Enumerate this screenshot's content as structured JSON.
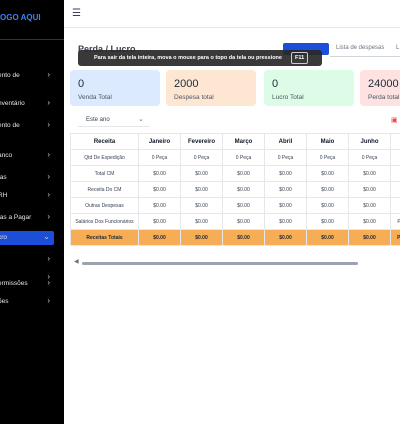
{
  "sidebar": {
    "logo": "OGO AQUI",
    "items": [
      {
        "label": "ento de",
        "chevron": "›"
      },
      {
        "label": "nventário",
        "chevron": "›"
      },
      {
        "label": "ento de",
        "chevron": "›"
      },
      {
        "label": "anco",
        "chevron": "›"
      },
      {
        "label": "tas",
        "chevron": "›"
      },
      {
        "label": "RH",
        "chevron": "›"
      },
      {
        "label": "tas a Pagar",
        "chevron": "›"
      },
      {
        "label": "cro",
        "chevron": "⌄",
        "active": true
      },
      {
        "label": "",
        "chevron": "›"
      },
      {
        "label": "",
        "chevron": "›"
      },
      {
        "label": "ermissões",
        "chevron": "›"
      },
      {
        "label": "ões",
        "chevron": "›"
      }
    ]
  },
  "header": {
    "menu_icon": "☰",
    "title": "Perda / Lucro"
  },
  "fullscreen_tip": {
    "text": "Para sair da tela inteira, mova o mouse para o topo da tela ou pressione",
    "key": "F11"
  },
  "tabs": [
    {
      "label": "",
      "active": true
    },
    {
      "label": "Lista de despesas"
    },
    {
      "label": "L"
    }
  ],
  "cards": [
    {
      "value": "0",
      "label": "Venda Total",
      "bg": "#dbeafe"
    },
    {
      "value": "2000",
      "label": "Despesa total",
      "bg": "#fde7d3"
    },
    {
      "value": "0",
      "label": "Lucro Total",
      "bg": "#dcfce7"
    },
    {
      "value": "24000",
      "label": "Perda total",
      "bg": "#fee2e2"
    }
  ],
  "filter": {
    "value": "Este ano",
    "icon": "chevron-down-icon"
  },
  "table": {
    "columns": [
      "Receita",
      "Janeiro",
      "Fevereiro",
      "Março",
      "Abril",
      "Maio",
      "Junho",
      ""
    ],
    "rows": [
      [
        "Qtd De Expedição",
        "0 Peça",
        "0 Peça",
        "0 Peça",
        "0 Peça",
        "0 Peça",
        "0 Peça",
        ""
      ],
      [
        "Total CM",
        "$0.00",
        "$0.00",
        "$0.00",
        "$0.00",
        "$0.00",
        "$0.00",
        ""
      ],
      [
        "Receita Do CM",
        "$0.00",
        "$0.00",
        "$0.00",
        "$0.00",
        "$0.00",
        "$0.00",
        ""
      ],
      [
        "Outras Despesas",
        "$0.00",
        "$0.00",
        "$0.00",
        "$0.00",
        "$0.00",
        "$0.00",
        ""
      ],
      [
        "Salários Dos Funcionários",
        "$0.00",
        "$0.00",
        "$0.00",
        "$0.00",
        "$0.00",
        "$0.00",
        "Preç"
      ]
    ],
    "total": [
      "Receitas Totais",
      "$0.00",
      "$0.00",
      "$0.00",
      "$0.00",
      "$0.00",
      "$0.00",
      "Preç"
    ]
  },
  "colors": {
    "accent": "#1d4ed8",
    "total_row": "#f6ad55"
  }
}
